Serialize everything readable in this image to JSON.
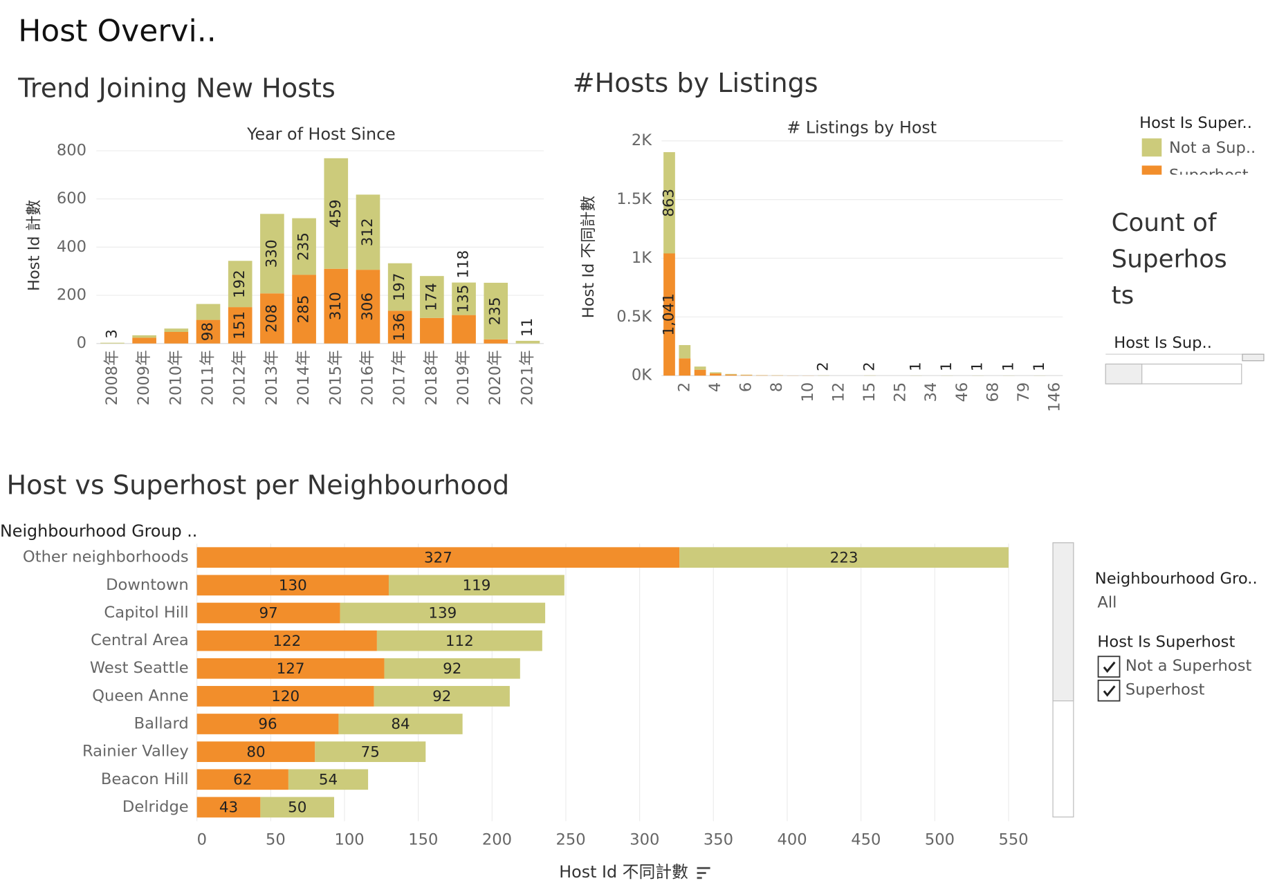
{
  "title": "Host Overvi..",
  "chart_data": [
    {
      "type": "bar",
      "title": "Trend Joining New Hosts",
      "x_label": "Year of Host Since",
      "y_label": "Host Id 計數",
      "categories": [
        "2008年",
        "2009年",
        "2010年",
        "2011年",
        "2012年",
        "2013年",
        "2014年",
        "2015年",
        "2016年",
        "2017年",
        "2018年",
        "2019年",
        "2020年",
        "2021年"
      ],
      "series": [
        {
          "color": "#f28e2b",
          "values": [
            0,
            24,
            48,
            98,
            151,
            208,
            285,
            310,
            306,
            136,
            106,
            118,
            17,
            0
          ],
          "value_labels": [
            null,
            null,
            null,
            "98",
            "151",
            "208",
            "285",
            "310",
            "306",
            "136",
            null,
            "118",
            null,
            null
          ]
        },
        {
          "color": "#cccb7b",
          "values": [
            3,
            10,
            14,
            66,
            192,
            330,
            235,
            459,
            312,
            197,
            174,
            135,
            235,
            11
          ],
          "value_labels": [
            "3",
            null,
            null,
            null,
            "192",
            "330",
            "235",
            "459",
            "312",
            "197",
            "174",
            "135",
            "235",
            "11"
          ]
        }
      ],
      "ylim": [
        0,
        800
      ],
      "yticks": [
        0,
        200,
        400,
        600,
        800
      ],
      "grid": true
    },
    {
      "type": "bar",
      "title": "#Hosts by Listings",
      "x_label": "# Listings by Host",
      "y_label": "Host Id 不同計數",
      "categories": [
        null,
        "2",
        null,
        "4",
        null,
        "6",
        null,
        "8",
        null,
        "10",
        null,
        "12",
        null,
        "15",
        null,
        "25",
        null,
        "34",
        null,
        "46",
        null,
        "68",
        null,
        "79",
        null,
        "146"
      ],
      "series": [
        {
          "color": "#f28e2b",
          "values": [
            1041,
            147,
            50,
            18,
            9,
            5,
            3,
            2,
            1,
            1,
            0,
            0,
            0,
            0,
            0,
            0,
            0,
            0,
            0,
            0,
            0,
            0,
            0,
            0,
            0,
            0
          ],
          "value_labels": [
            "1,041",
            null,
            null,
            null,
            null,
            null,
            null,
            null,
            null,
            null,
            null,
            null,
            null,
            null,
            null,
            null,
            null,
            null,
            null,
            null,
            null,
            null,
            null,
            null,
            null,
            null
          ]
        },
        {
          "color": "#cccb7b",
          "values": [
            863,
            113,
            27,
            10,
            5,
            3,
            1,
            1,
            0,
            0,
            2,
            0,
            0,
            2,
            0,
            0,
            1,
            0,
            1,
            0,
            1,
            0,
            1,
            0,
            1,
            0
          ],
          "value_labels": [
            "863",
            null,
            null,
            null,
            null,
            null,
            null,
            null,
            null,
            null,
            "2",
            null,
            null,
            "2",
            null,
            null,
            "1",
            null,
            "1",
            null,
            "1",
            null,
            "1",
            null,
            "1",
            null
          ]
        }
      ],
      "ylim": [
        0,
        2000
      ],
      "yticks": [
        {
          "value": 0,
          "label": "0K"
        },
        {
          "value": 500,
          "label": "0.5K"
        },
        {
          "value": 1000,
          "label": "1K"
        },
        {
          "value": 1500,
          "label": "1.5K"
        },
        {
          "value": 2000,
          "label": "2K"
        }
      ],
      "grid": true
    },
    {
      "type": "bar",
      "orientation": "horizontal",
      "title": "Host vs Superhost per Neighbourhood",
      "category_header": "Neighbourhood Group ..",
      "x_label": "Host Id 不同計數",
      "categories": [
        "Other neighborhoods",
        "Downtown",
        "Capitol Hill",
        "Central Area",
        "West Seattle",
        "Queen Anne",
        "Ballard",
        "Rainier Valley",
        "Beacon Hill",
        "Delridge"
      ],
      "series": [
        {
          "name": "Superhost",
          "color": "#f28e2b",
          "values": [
            327,
            130,
            97,
            122,
            127,
            120,
            96,
            80,
            62,
            43
          ]
        },
        {
          "name": "Not a Superhost",
          "color": "#cccb7b",
          "values": [
            223,
            119,
            139,
            112,
            92,
            92,
            84,
            75,
            54,
            50
          ]
        }
      ],
      "xlim": [
        0,
        570
      ],
      "xticks": [
        0,
        50,
        100,
        150,
        200,
        250,
        300,
        350,
        400,
        450,
        500,
        550
      ],
      "grid": true
    }
  ],
  "legend_top": {
    "title": "Host Is Super..",
    "items": [
      "Not a Sup..",
      "Superhost"
    ]
  },
  "count_panel": {
    "title_lines": [
      "Count of",
      "Superhos",
      "ts"
    ],
    "filter_label": "Host Is Sup.."
  },
  "neighbourhood_filter": {
    "title": "Neighbourhood Gro..",
    "value": "All"
  },
  "superhost_filter": {
    "title": "Host Is Superhost"
  }
}
